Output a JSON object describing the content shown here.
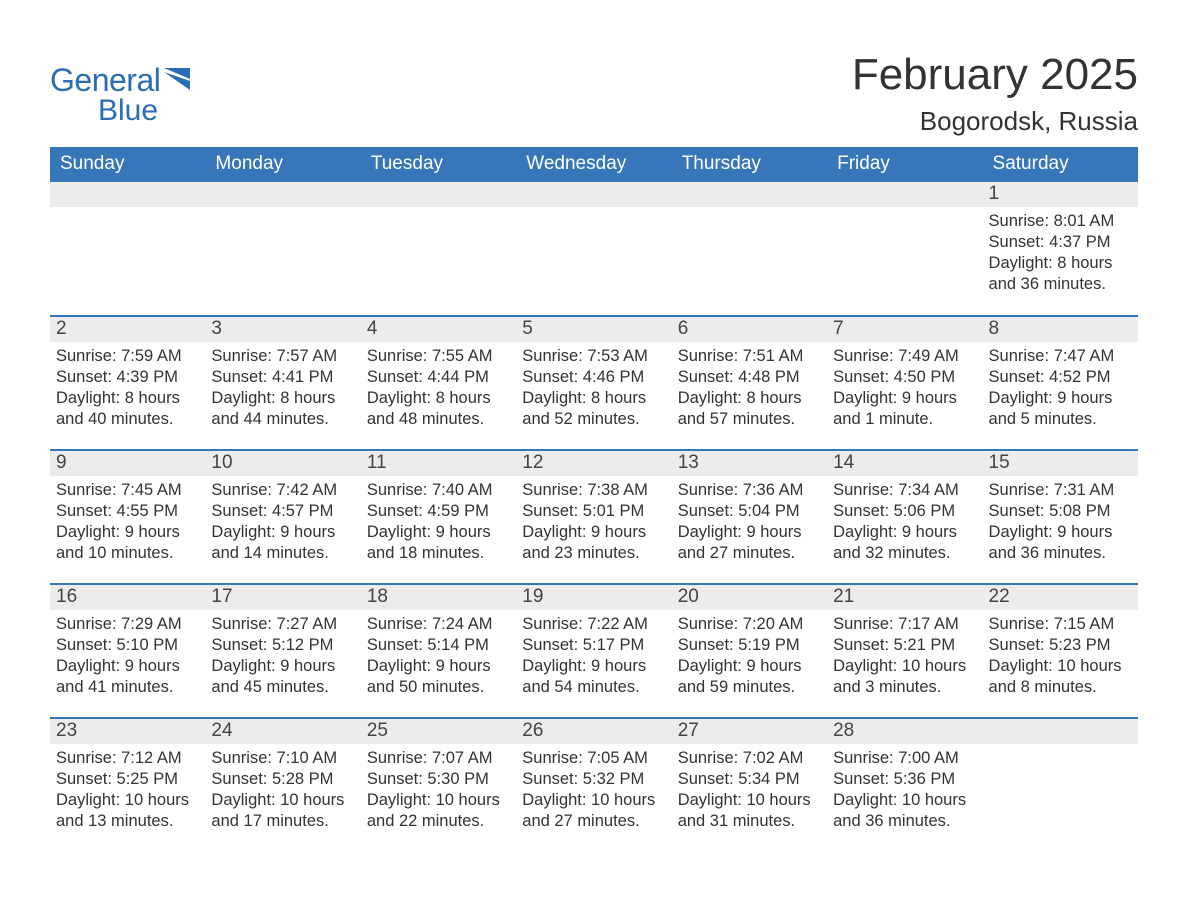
{
  "brand": {
    "word1": "General",
    "word2": "Blue",
    "accent_color": "#2a6db7"
  },
  "title": "February 2025",
  "location": "Bogorodsk, Russia",
  "colors": {
    "header_bg": "#3776b9",
    "header_text": "#ffffff",
    "daynum_bg": "#ececec",
    "text": "#333333",
    "rule": "#3776b9"
  },
  "day_headers": [
    "Sunday",
    "Monday",
    "Tuesday",
    "Wednesday",
    "Thursday",
    "Friday",
    "Saturday"
  ],
  "weeks": [
    [
      null,
      null,
      null,
      null,
      null,
      null,
      {
        "n": "1",
        "sunrise": "Sunrise: 8:01 AM",
        "sunset": "Sunset: 4:37 PM",
        "day1": "Daylight: 8 hours",
        "day2": "and 36 minutes."
      }
    ],
    [
      {
        "n": "2",
        "sunrise": "Sunrise: 7:59 AM",
        "sunset": "Sunset: 4:39 PM",
        "day1": "Daylight: 8 hours",
        "day2": "and 40 minutes."
      },
      {
        "n": "3",
        "sunrise": "Sunrise: 7:57 AM",
        "sunset": "Sunset: 4:41 PM",
        "day1": "Daylight: 8 hours",
        "day2": "and 44 minutes."
      },
      {
        "n": "4",
        "sunrise": "Sunrise: 7:55 AM",
        "sunset": "Sunset: 4:44 PM",
        "day1": "Daylight: 8 hours",
        "day2": "and 48 minutes."
      },
      {
        "n": "5",
        "sunrise": "Sunrise: 7:53 AM",
        "sunset": "Sunset: 4:46 PM",
        "day1": "Daylight: 8 hours",
        "day2": "and 52 minutes."
      },
      {
        "n": "6",
        "sunrise": "Sunrise: 7:51 AM",
        "sunset": "Sunset: 4:48 PM",
        "day1": "Daylight: 8 hours",
        "day2": "and 57 minutes."
      },
      {
        "n": "7",
        "sunrise": "Sunrise: 7:49 AM",
        "sunset": "Sunset: 4:50 PM",
        "day1": "Daylight: 9 hours",
        "day2": "and 1 minute."
      },
      {
        "n": "8",
        "sunrise": "Sunrise: 7:47 AM",
        "sunset": "Sunset: 4:52 PM",
        "day1": "Daylight: 9 hours",
        "day2": "and 5 minutes."
      }
    ],
    [
      {
        "n": "9",
        "sunrise": "Sunrise: 7:45 AM",
        "sunset": "Sunset: 4:55 PM",
        "day1": "Daylight: 9 hours",
        "day2": "and 10 minutes."
      },
      {
        "n": "10",
        "sunrise": "Sunrise: 7:42 AM",
        "sunset": "Sunset: 4:57 PM",
        "day1": "Daylight: 9 hours",
        "day2": "and 14 minutes."
      },
      {
        "n": "11",
        "sunrise": "Sunrise: 7:40 AM",
        "sunset": "Sunset: 4:59 PM",
        "day1": "Daylight: 9 hours",
        "day2": "and 18 minutes."
      },
      {
        "n": "12",
        "sunrise": "Sunrise: 7:38 AM",
        "sunset": "Sunset: 5:01 PM",
        "day1": "Daylight: 9 hours",
        "day2": "and 23 minutes."
      },
      {
        "n": "13",
        "sunrise": "Sunrise: 7:36 AM",
        "sunset": "Sunset: 5:04 PM",
        "day1": "Daylight: 9 hours",
        "day2": "and 27 minutes."
      },
      {
        "n": "14",
        "sunrise": "Sunrise: 7:34 AM",
        "sunset": "Sunset: 5:06 PM",
        "day1": "Daylight: 9 hours",
        "day2": "and 32 minutes."
      },
      {
        "n": "15",
        "sunrise": "Sunrise: 7:31 AM",
        "sunset": "Sunset: 5:08 PM",
        "day1": "Daylight: 9 hours",
        "day2": "and 36 minutes."
      }
    ],
    [
      {
        "n": "16",
        "sunrise": "Sunrise: 7:29 AM",
        "sunset": "Sunset: 5:10 PM",
        "day1": "Daylight: 9 hours",
        "day2": "and 41 minutes."
      },
      {
        "n": "17",
        "sunrise": "Sunrise: 7:27 AM",
        "sunset": "Sunset: 5:12 PM",
        "day1": "Daylight: 9 hours",
        "day2": "and 45 minutes."
      },
      {
        "n": "18",
        "sunrise": "Sunrise: 7:24 AM",
        "sunset": "Sunset: 5:14 PM",
        "day1": "Daylight: 9 hours",
        "day2": "and 50 minutes."
      },
      {
        "n": "19",
        "sunrise": "Sunrise: 7:22 AM",
        "sunset": "Sunset: 5:17 PM",
        "day1": "Daylight: 9 hours",
        "day2": "and 54 minutes."
      },
      {
        "n": "20",
        "sunrise": "Sunrise: 7:20 AM",
        "sunset": "Sunset: 5:19 PM",
        "day1": "Daylight: 9 hours",
        "day2": "and 59 minutes."
      },
      {
        "n": "21",
        "sunrise": "Sunrise: 7:17 AM",
        "sunset": "Sunset: 5:21 PM",
        "day1": "Daylight: 10 hours",
        "day2": "and 3 minutes."
      },
      {
        "n": "22",
        "sunrise": "Sunrise: 7:15 AM",
        "sunset": "Sunset: 5:23 PM",
        "day1": "Daylight: 10 hours",
        "day2": "and 8 minutes."
      }
    ],
    [
      {
        "n": "23",
        "sunrise": "Sunrise: 7:12 AM",
        "sunset": "Sunset: 5:25 PM",
        "day1": "Daylight: 10 hours",
        "day2": "and 13 minutes."
      },
      {
        "n": "24",
        "sunrise": "Sunrise: 7:10 AM",
        "sunset": "Sunset: 5:28 PM",
        "day1": "Daylight: 10 hours",
        "day2": "and 17 minutes."
      },
      {
        "n": "25",
        "sunrise": "Sunrise: 7:07 AM",
        "sunset": "Sunset: 5:30 PM",
        "day1": "Daylight: 10 hours",
        "day2": "and 22 minutes."
      },
      {
        "n": "26",
        "sunrise": "Sunrise: 7:05 AM",
        "sunset": "Sunset: 5:32 PM",
        "day1": "Daylight: 10 hours",
        "day2": "and 27 minutes."
      },
      {
        "n": "27",
        "sunrise": "Sunrise: 7:02 AM",
        "sunset": "Sunset: 5:34 PM",
        "day1": "Daylight: 10 hours",
        "day2": "and 31 minutes."
      },
      {
        "n": "28",
        "sunrise": "Sunrise: 7:00 AM",
        "sunset": "Sunset: 5:36 PM",
        "day1": "Daylight: 10 hours",
        "day2": "and 36 minutes."
      },
      null
    ]
  ]
}
